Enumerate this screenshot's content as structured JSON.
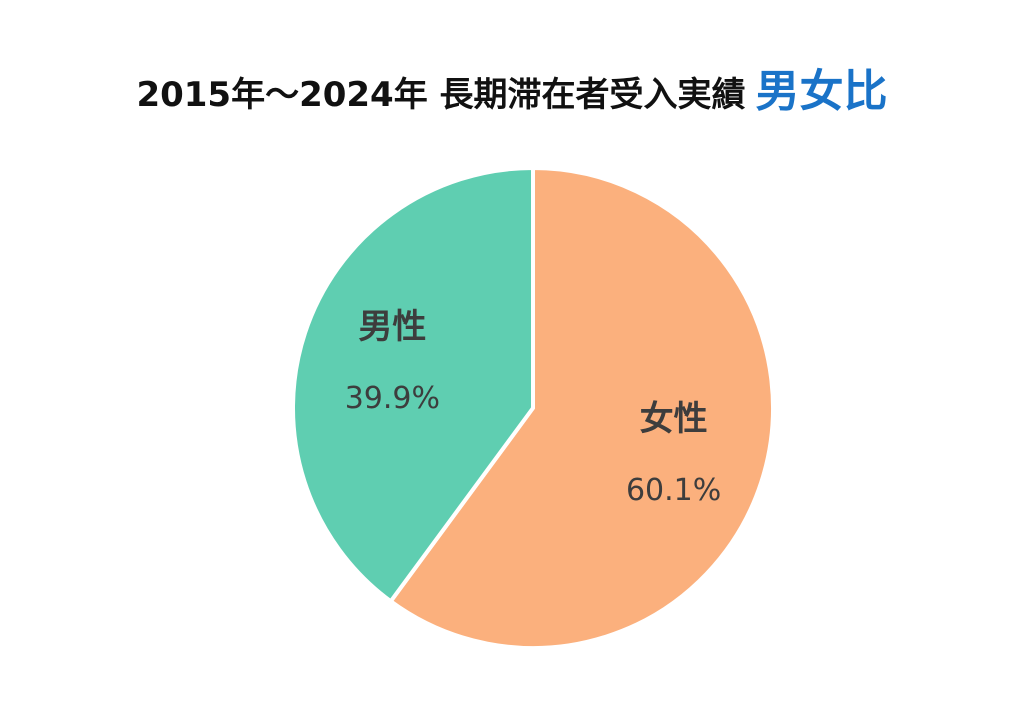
{
  "title": {
    "main": "2015年～2024年 長期滞在者受入実績",
    "accent": "男女比"
  },
  "colors": {
    "title_accent": "#1a73c8",
    "label_text": "#3d3d3d",
    "separator": "#ffffff"
  },
  "chart_data": {
    "type": "pie",
    "title": "2015年～2024年 長期滞在者受入実績 男女比",
    "slices": [
      {
        "label": "女性",
        "value": 60.1,
        "display": "60.1%",
        "color": "#fbb07d"
      },
      {
        "label": "男性",
        "value": 39.9,
        "display": "39.9%",
        "color": "#5fceb1"
      }
    ],
    "start": "12 o'clock",
    "direction": "clockwise",
    "legend": "none"
  }
}
